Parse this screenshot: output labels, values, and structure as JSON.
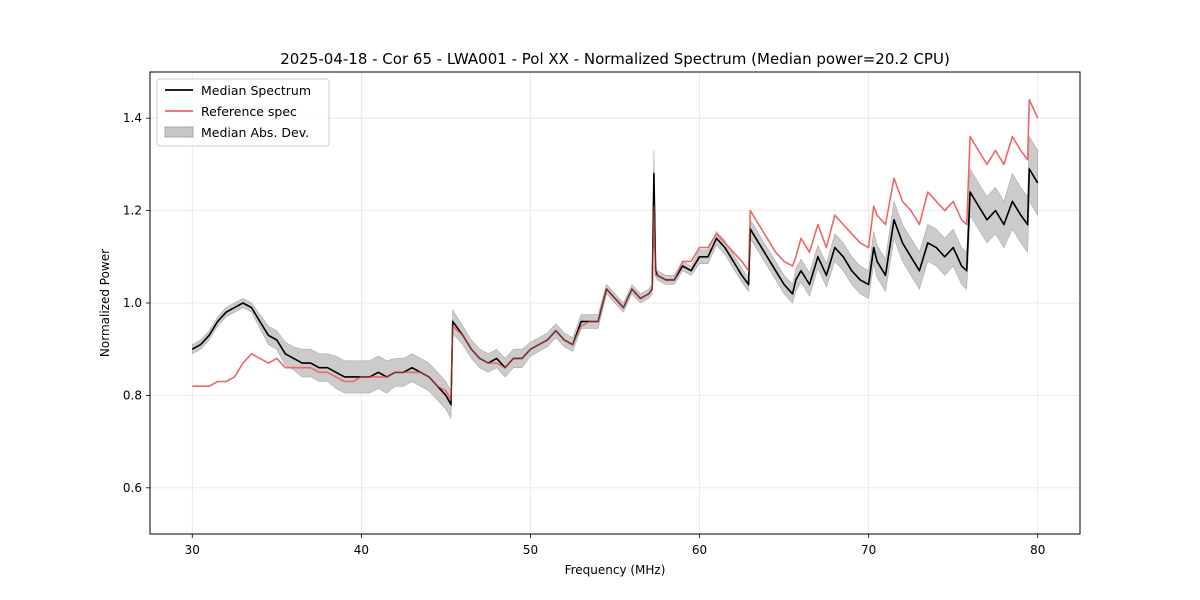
{
  "chart_data": {
    "type": "line",
    "title": "2025-04-18 - Cor 65 - LWA001 - Pol XX - Normalized Spectrum (Median power=20.2 CPU)",
    "xlabel": "Frequency (MHz)",
    "ylabel": "Normalized Power",
    "xlim": [
      27.5,
      82.5
    ],
    "ylim": [
      0.5,
      1.5
    ],
    "xticks": [
      30,
      40,
      50,
      60,
      70,
      80
    ],
    "yticks": [
      0.6,
      0.8,
      1.0,
      1.2,
      1.4
    ],
    "xtick_labels": [
      "30",
      "40",
      "50",
      "60",
      "70",
      "80"
    ],
    "ytick_labels": [
      "0.6",
      "0.8",
      "1.0",
      "1.2",
      "1.4"
    ],
    "grid": true,
    "legend_position": "top-left",
    "legend": [
      {
        "label": "Median Spectrum",
        "kind": "line",
        "color": "#000000"
      },
      {
        "label": "Reference spec",
        "kind": "line",
        "color": "#f06666"
      },
      {
        "label": "Median Abs. Dev.",
        "kind": "band",
        "color": "#c8c8c8"
      }
    ],
    "series": [
      {
        "name": "Median Spectrum",
        "color": "#000000",
        "x": [
          30.0,
          30.5,
          31.0,
          31.5,
          32.0,
          32.5,
          33.0,
          33.5,
          34.0,
          34.5,
          35.0,
          35.5,
          36.0,
          36.5,
          37.0,
          37.5,
          38.0,
          38.5,
          39.0,
          39.5,
          40.0,
          40.5,
          41.0,
          41.5,
          42.0,
          42.5,
          43.0,
          43.5,
          44.0,
          44.5,
          45.0,
          45.3,
          45.4,
          46.0,
          46.5,
          47.0,
          47.5,
          48.0,
          48.5,
          49.0,
          49.5,
          50.0,
          50.5,
          51.0,
          51.5,
          52.0,
          52.5,
          53.0,
          53.5,
          54.0,
          54.5,
          55.0,
          55.5,
          56.0,
          56.5,
          57.0,
          57.2,
          57.3,
          57.4,
          57.5,
          58.0,
          58.5,
          59.0,
          59.5,
          60.0,
          60.5,
          61.0,
          61.5,
          62.0,
          62.5,
          62.9,
          63.0,
          63.5,
          64.0,
          64.5,
          65.0,
          65.5,
          65.7,
          66.0,
          66.5,
          67.0,
          67.5,
          68.0,
          68.5,
          69.0,
          69.5,
          70.0,
          70.3,
          70.5,
          71.0,
          71.5,
          72.0,
          72.5,
          73.0,
          73.5,
          74.0,
          74.5,
          75.0,
          75.5,
          75.8,
          76.0,
          76.5,
          77.0,
          77.5,
          78.0,
          78.5,
          79.0,
          79.4,
          79.5,
          80.0
        ],
        "values": [
          0.9,
          0.91,
          0.93,
          0.96,
          0.98,
          0.99,
          1.0,
          0.99,
          0.96,
          0.93,
          0.92,
          0.89,
          0.88,
          0.87,
          0.87,
          0.86,
          0.86,
          0.85,
          0.84,
          0.84,
          0.84,
          0.84,
          0.85,
          0.84,
          0.85,
          0.85,
          0.86,
          0.85,
          0.84,
          0.82,
          0.8,
          0.78,
          0.96,
          0.93,
          0.9,
          0.88,
          0.87,
          0.88,
          0.86,
          0.88,
          0.88,
          0.9,
          0.91,
          0.92,
          0.94,
          0.92,
          0.91,
          0.96,
          0.96,
          0.96,
          1.03,
          1.01,
          0.99,
          1.03,
          1.01,
          1.02,
          1.03,
          1.28,
          1.07,
          1.06,
          1.05,
          1.05,
          1.08,
          1.07,
          1.1,
          1.1,
          1.14,
          1.12,
          1.09,
          1.06,
          1.04,
          1.16,
          1.13,
          1.1,
          1.07,
          1.04,
          1.02,
          1.05,
          1.07,
          1.04,
          1.1,
          1.06,
          1.12,
          1.1,
          1.07,
          1.05,
          1.04,
          1.12,
          1.09,
          1.06,
          1.18,
          1.13,
          1.1,
          1.07,
          1.13,
          1.12,
          1.1,
          1.12,
          1.08,
          1.07,
          1.24,
          1.21,
          1.18,
          1.2,
          1.17,
          1.22,
          1.19,
          1.17,
          1.29,
          1.26
        ]
      },
      {
        "name": "Reference spec",
        "color": "#f06666",
        "x": [
          30.0,
          30.5,
          31.0,
          31.5,
          32.0,
          32.5,
          33.0,
          33.5,
          34.0,
          34.5,
          35.0,
          35.5,
          36.0,
          36.5,
          37.0,
          37.5,
          38.0,
          38.5,
          39.0,
          39.5,
          40.0,
          40.5,
          41.0,
          41.5,
          42.0,
          42.5,
          43.0,
          43.5,
          44.0,
          44.5,
          45.0,
          45.3,
          45.4,
          46.0,
          46.5,
          47.0,
          47.5,
          48.0,
          48.5,
          49.0,
          49.5,
          50.0,
          50.5,
          51.0,
          51.5,
          52.0,
          52.5,
          53.0,
          53.5,
          54.0,
          54.5,
          55.0,
          55.5,
          56.0,
          56.5,
          57.0,
          57.2,
          57.3,
          57.4,
          57.5,
          58.0,
          58.5,
          59.0,
          59.5,
          60.0,
          60.5,
          61.0,
          61.5,
          62.0,
          62.5,
          62.9,
          63.0,
          63.5,
          64.0,
          64.5,
          65.0,
          65.5,
          65.7,
          66.0,
          66.5,
          67.0,
          67.5,
          68.0,
          68.5,
          69.0,
          69.5,
          70.0,
          70.3,
          70.5,
          71.0,
          71.5,
          72.0,
          72.5,
          73.0,
          73.5,
          74.0,
          74.5,
          75.0,
          75.5,
          75.8,
          76.0,
          76.5,
          77.0,
          77.5,
          78.0,
          78.5,
          79.0,
          79.4,
          79.5,
          80.0
        ],
        "values": [
          0.82,
          0.82,
          0.82,
          0.83,
          0.83,
          0.84,
          0.87,
          0.89,
          0.88,
          0.87,
          0.88,
          0.86,
          0.86,
          0.86,
          0.86,
          0.85,
          0.85,
          0.84,
          0.83,
          0.83,
          0.84,
          0.84,
          0.84,
          0.84,
          0.85,
          0.85,
          0.85,
          0.85,
          0.84,
          0.82,
          0.81,
          0.79,
          0.95,
          0.93,
          0.9,
          0.88,
          0.87,
          0.87,
          0.86,
          0.88,
          0.88,
          0.9,
          0.91,
          0.92,
          0.94,
          0.92,
          0.91,
          0.95,
          0.96,
          0.96,
          1.03,
          1.01,
          0.99,
          1.03,
          1.01,
          1.02,
          1.03,
          1.21,
          1.06,
          1.06,
          1.05,
          1.05,
          1.09,
          1.09,
          1.12,
          1.12,
          1.15,
          1.13,
          1.11,
          1.09,
          1.07,
          1.2,
          1.17,
          1.14,
          1.11,
          1.09,
          1.08,
          1.1,
          1.14,
          1.11,
          1.17,
          1.12,
          1.19,
          1.17,
          1.15,
          1.13,
          1.12,
          1.21,
          1.19,
          1.17,
          1.27,
          1.22,
          1.2,
          1.17,
          1.24,
          1.22,
          1.2,
          1.22,
          1.18,
          1.17,
          1.36,
          1.33,
          1.3,
          1.33,
          1.3,
          1.36,
          1.33,
          1.31,
          1.44,
          1.4
        ]
      }
    ],
    "band": {
      "name": "Median Abs. Dev.",
      "color": "#c8c8c8",
      "spread": [
        0.01,
        0.01,
        0.01,
        0.01,
        0.01,
        0.01,
        0.01,
        0.01,
        0.015,
        0.02,
        0.02,
        0.025,
        0.025,
        0.03,
        0.03,
        0.03,
        0.03,
        0.035,
        0.035,
        0.035,
        0.035,
        0.035,
        0.035,
        0.035,
        0.03,
        0.03,
        0.03,
        0.03,
        0.03,
        0.03,
        0.03,
        0.03,
        0.025,
        0.02,
        0.02,
        0.02,
        0.02,
        0.02,
        0.02,
        0.02,
        0.02,
        0.015,
        0.015,
        0.015,
        0.015,
        0.015,
        0.015,
        0.015,
        0.015,
        0.015,
        0.01,
        0.01,
        0.01,
        0.01,
        0.01,
        0.01,
        0.01,
        0.05,
        0.01,
        0.01,
        0.01,
        0.01,
        0.01,
        0.01,
        0.015,
        0.015,
        0.015,
        0.015,
        0.015,
        0.015,
        0.015,
        0.02,
        0.02,
        0.02,
        0.02,
        0.02,
        0.02,
        0.025,
        0.025,
        0.025,
        0.025,
        0.025,
        0.03,
        0.03,
        0.03,
        0.03,
        0.03,
        0.035,
        0.035,
        0.035,
        0.04,
        0.04,
        0.04,
        0.04,
        0.04,
        0.04,
        0.04,
        0.04,
        0.04,
        0.04,
        0.05,
        0.05,
        0.05,
        0.05,
        0.05,
        0.06,
        0.06,
        0.06,
        0.07,
        0.07
      ]
    }
  }
}
